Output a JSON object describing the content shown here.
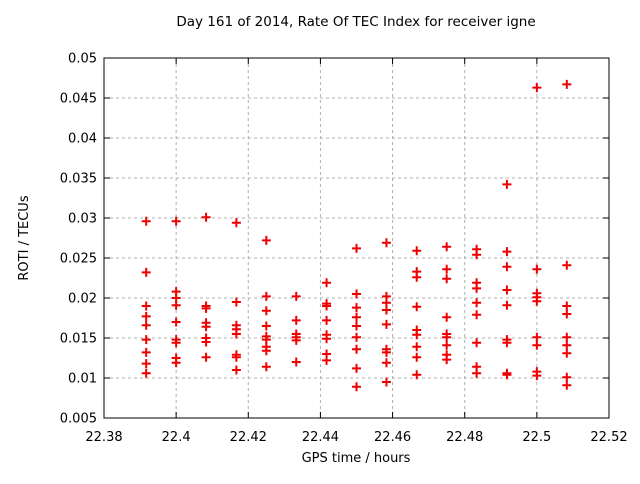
{
  "chart": {
    "title": "Day 161 of 2014, Rate Of TEC Index for receiver igne",
    "xlabel": "GPS time / hours",
    "ylabel": "ROTI / TECUs"
  },
  "chart_data": {
    "type": "scatter",
    "title": "Day 161 of 2014, Rate Of TEC Index for receiver igne",
    "xlabel": "GPS time / hours",
    "ylabel": "ROTI / TECUs",
    "xlim": [
      22.38,
      22.52
    ],
    "ylim": [
      0.005,
      0.05
    ],
    "xtick_values": [
      22.38,
      22.4,
      22.42,
      22.44,
      22.46,
      22.48,
      22.5,
      22.52
    ],
    "xtick_labels": [
      "22.38",
      "22.4",
      "22.42",
      "22.44",
      "22.46",
      "22.48",
      "22.5",
      "22.52"
    ],
    "ytick_values": [
      0.005,
      0.01,
      0.015,
      0.02,
      0.025,
      0.03,
      0.035,
      0.04,
      0.045,
      0.05
    ],
    "ytick_labels": [
      "0.005",
      "0.01",
      "0.015",
      "0.02",
      "0.025",
      "0.03",
      "0.035",
      "0.04",
      "0.045",
      "0.05"
    ],
    "grid": true,
    "legend_position": "none",
    "grid_color": "#b0b0b0",
    "border_color": "#000000",
    "marker": {
      "shape": "plus",
      "color": "#ee0000",
      "size": 9
    },
    "series": [
      {
        "name": "ROTI",
        "points": [
          [
            22.3917,
            0.0296
          ],
          [
            22.3917,
            0.0232
          ],
          [
            22.3917,
            0.019
          ],
          [
            22.3917,
            0.0177
          ],
          [
            22.3917,
            0.0166
          ],
          [
            22.3917,
            0.0148
          ],
          [
            22.3917,
            0.0132
          ],
          [
            22.3917,
            0.0118
          ],
          [
            22.3917,
            0.0106
          ],
          [
            22.4,
            0.0296
          ],
          [
            22.4,
            0.0208
          ],
          [
            22.4,
            0.02
          ],
          [
            22.4,
            0.0191
          ],
          [
            22.4,
            0.017
          ],
          [
            22.4,
            0.0148
          ],
          [
            22.4,
            0.0144
          ],
          [
            22.4,
            0.0125
          ],
          [
            22.4,
            0.0119
          ],
          [
            22.4083,
            0.0301
          ],
          [
            22.4083,
            0.019
          ],
          [
            22.4083,
            0.0187
          ],
          [
            22.4083,
            0.0169
          ],
          [
            22.4083,
            0.0164
          ],
          [
            22.4083,
            0.015
          ],
          [
            22.4083,
            0.0145
          ],
          [
            22.4083,
            0.0126
          ],
          [
            22.4167,
            0.0294
          ],
          [
            22.4167,
            0.0195
          ],
          [
            22.4167,
            0.0166
          ],
          [
            22.4167,
            0.0161
          ],
          [
            22.4167,
            0.0155
          ],
          [
            22.4167,
            0.0129
          ],
          [
            22.4167,
            0.0126
          ],
          [
            22.4167,
            0.011
          ],
          [
            22.425,
            0.0272
          ],
          [
            22.425,
            0.0202
          ],
          [
            22.425,
            0.0184
          ],
          [
            22.425,
            0.0165
          ],
          [
            22.425,
            0.0152
          ],
          [
            22.425,
            0.0148
          ],
          [
            22.425,
            0.0139
          ],
          [
            22.425,
            0.0134
          ],
          [
            22.425,
            0.0114
          ],
          [
            22.4333,
            0.0202
          ],
          [
            22.4333,
            0.0172
          ],
          [
            22.4333,
            0.0155
          ],
          [
            22.4333,
            0.0151
          ],
          [
            22.4333,
            0.0147
          ],
          [
            22.4333,
            0.012
          ],
          [
            22.4417,
            0.0219
          ],
          [
            22.4417,
            0.0193
          ],
          [
            22.4417,
            0.019
          ],
          [
            22.4417,
            0.0172
          ],
          [
            22.4417,
            0.0154
          ],
          [
            22.4417,
            0.0149
          ],
          [
            22.4417,
            0.013
          ],
          [
            22.4417,
            0.0122
          ],
          [
            22.45,
            0.0262
          ],
          [
            22.45,
            0.0205
          ],
          [
            22.45,
            0.0188
          ],
          [
            22.45,
            0.0176
          ],
          [
            22.45,
            0.0165
          ],
          [
            22.45,
            0.0151
          ],
          [
            22.45,
            0.0136
          ],
          [
            22.45,
            0.0112
          ],
          [
            22.45,
            0.0089
          ],
          [
            22.4583,
            0.0269
          ],
          [
            22.4583,
            0.0202
          ],
          [
            22.4583,
            0.0194
          ],
          [
            22.4583,
            0.0185
          ],
          [
            22.4583,
            0.0167
          ],
          [
            22.4583,
            0.0136
          ],
          [
            22.4583,
            0.0132
          ],
          [
            22.4583,
            0.0119
          ],
          [
            22.4583,
            0.0095
          ],
          [
            22.4667,
            0.0259
          ],
          [
            22.4667,
            0.0233
          ],
          [
            22.4667,
            0.0226
          ],
          [
            22.4667,
            0.0189
          ],
          [
            22.4667,
            0.016
          ],
          [
            22.4667,
            0.0154
          ],
          [
            22.4667,
            0.0139
          ],
          [
            22.4667,
            0.0126
          ],
          [
            22.4667,
            0.0104
          ],
          [
            22.475,
            0.0264
          ],
          [
            22.475,
            0.0236
          ],
          [
            22.475,
            0.0224
          ],
          [
            22.475,
            0.0176
          ],
          [
            22.475,
            0.0155
          ],
          [
            22.475,
            0.0151
          ],
          [
            22.475,
            0.0141
          ],
          [
            22.475,
            0.0129
          ],
          [
            22.475,
            0.0123
          ],
          [
            22.4833,
            0.0261
          ],
          [
            22.4833,
            0.0254
          ],
          [
            22.4833,
            0.0219
          ],
          [
            22.4833,
            0.0212
          ],
          [
            22.4833,
            0.0194
          ],
          [
            22.4833,
            0.0179
          ],
          [
            22.4833,
            0.0144
          ],
          [
            22.4833,
            0.0114
          ],
          [
            22.4833,
            0.0106
          ],
          [
            22.4917,
            0.0342
          ],
          [
            22.4917,
            0.0258
          ],
          [
            22.4917,
            0.0239
          ],
          [
            22.4917,
            0.021
          ],
          [
            22.4917,
            0.0191
          ],
          [
            22.4917,
            0.0148
          ],
          [
            22.4917,
            0.0144
          ],
          [
            22.4917,
            0.0106
          ],
          [
            22.4917,
            0.0104
          ],
          [
            22.5,
            0.0463
          ],
          [
            22.5,
            0.0236
          ],
          [
            22.5,
            0.0206
          ],
          [
            22.5,
            0.0201
          ],
          [
            22.5,
            0.0196
          ],
          [
            22.5,
            0.0151
          ],
          [
            22.5,
            0.0141
          ],
          [
            22.5,
            0.0108
          ],
          [
            22.5,
            0.0103
          ],
          [
            22.5083,
            0.0467
          ],
          [
            22.5083,
            0.0241
          ],
          [
            22.5083,
            0.019
          ],
          [
            22.5083,
            0.018
          ],
          [
            22.5083,
            0.0151
          ],
          [
            22.5083,
            0.0141
          ],
          [
            22.5083,
            0.0131
          ],
          [
            22.5083,
            0.0101
          ],
          [
            22.5083,
            0.0091
          ]
        ]
      }
    ]
  }
}
